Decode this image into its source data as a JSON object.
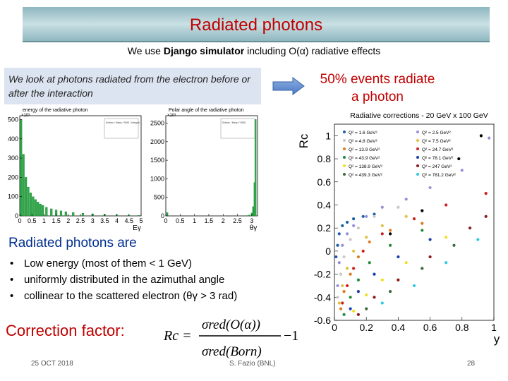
{
  "slide": {
    "title": "Radiated photons",
    "subtitle_pre": "We use ",
    "subtitle_bold": "Django simulator",
    "subtitle_post": " including O(α) radiative effects",
    "intro": "We look at photons radiated from the electron before or after the interaction",
    "radiate_line1": "50% events radiate",
    "radiate_line2": "a photon",
    "section_title": "Radiated photons are",
    "bullets": [
      "Low energy (most of them < 1 GeV)",
      "uniformly distributed in the azimuthal  angle",
      "collinear to the scattered electron (θγ > 3 rad)"
    ],
    "correction_title": "Correction factor:",
    "formula": {
      "lhs": "Rc =",
      "num": "σred(O(α))",
      "den": "σred(Born)",
      "tail": "−1"
    },
    "footer": {
      "date": "25 OCT 2018",
      "author": "S. Fazio (BNL)",
      "page": "28"
    },
    "colors": {
      "title": "#c00000",
      "section": "#00308f",
      "banner": "#8fb7bf",
      "intro_bg": "#dbe4f0"
    }
  },
  "chart_data": [
    {
      "type": "bar",
      "title": "energy of the radiative photon",
      "xlabel": "Eγ",
      "ylabel": "",
      "y_multiplier": "×10³",
      "xlim": [
        0,
        5
      ],
      "ylim": [
        0,
        520
      ],
      "xticks": [
        "0",
        "0.5",
        "1",
        "1.5",
        "2",
        "2.5",
        "3",
        "3.5",
        "4",
        "4.5",
        "5"
      ],
      "yticks": [
        "0",
        "100",
        "200",
        "300",
        "400",
        "500"
      ],
      "x": [
        0.05,
        0.15,
        0.25,
        0.35,
        0.45,
        0.55,
        0.65,
        0.75,
        0.85,
        0.95,
        1.1,
        1.3,
        1.5,
        1.7,
        1.9,
        2.2,
        2.6,
        3.0,
        3.5,
        4.0,
        4.5,
        4.9
      ],
      "values": [
        500,
        320,
        200,
        150,
        120,
        100,
        85,
        72,
        62,
        55,
        45,
        37,
        31,
        26,
        22,
        18,
        14,
        11,
        8,
        6,
        4,
        3
      ],
      "stats_box": "Entries / Mean / RMS / Integral"
    },
    {
      "type": "bar",
      "title": "Polar angle of the radiative photon",
      "xlabel": "θγ",
      "ylabel": "",
      "y_multiplier": "×10³",
      "xlim": [
        0,
        3.2
      ],
      "ylim": [
        0,
        2700
      ],
      "xticks": [
        "0",
        "0.5",
        "1",
        "1.5",
        "2",
        "2.5",
        "3"
      ],
      "yticks": [
        "0",
        "500",
        "1000",
        "1500",
        "2000",
        "2500"
      ],
      "x": [
        0.05,
        0.5,
        1.0,
        1.5,
        2.0,
        2.5,
        2.8,
        2.9,
        3.0,
        3.05,
        3.1,
        3.13
      ],
      "values": [
        90,
        8,
        3,
        2,
        3,
        4,
        10,
        25,
        80,
        250,
        900,
        2600
      ],
      "stats_box": "Entries / Mean / RMS"
    },
    {
      "type": "scatter",
      "title": "Radiative corrections - 20 GeV x 100 GeV",
      "xlabel": "y",
      "ylabel": "Rc",
      "xlim": [
        0,
        1
      ],
      "ylim": [
        -0.6,
        1.1
      ],
      "xticks": [
        "0",
        "0.2",
        "0.4",
        "0.6",
        "0.8",
        "1"
      ],
      "yticks": [
        "-0.6",
        "-0.4",
        "-0.2",
        "0",
        "0.2",
        "0.4",
        "0.6",
        "0.8",
        "1"
      ],
      "legend": "top-inside",
      "series": [
        {
          "name": "Q² = 1.6 GeV²",
          "color": "#1a5fa8",
          "points": [
            [
              0.01,
              -0.05
            ],
            [
              0.02,
              0.05
            ],
            [
              0.03,
              0.15
            ],
            [
              0.05,
              0.22
            ],
            [
              0.08,
              0.25
            ],
            [
              0.12,
              0.28
            ],
            [
              0.18,
              0.3
            ],
            [
              0.25,
              0.32
            ]
          ]
        },
        {
          "name": "Q² = 2.5 GeV²",
          "color": "#9a8fd6",
          "points": [
            [
              0.02,
              -0.3
            ],
            [
              0.03,
              -0.1
            ],
            [
              0.05,
              0.05
            ],
            [
              0.08,
              0.15
            ],
            [
              0.12,
              0.22
            ],
            [
              0.2,
              0.3
            ],
            [
              0.3,
              0.38
            ],
            [
              0.45,
              0.45
            ],
            [
              0.6,
              0.55
            ],
            [
              0.8,
              0.7
            ],
            [
              0.97,
              0.98
            ]
          ]
        },
        {
          "name": "Q² = 4.8 GeV²",
          "color": "#c8c8c8",
          "points": [
            [
              0.02,
              -0.4
            ],
            [
              0.04,
              -0.2
            ],
            [
              0.06,
              -0.05
            ],
            [
              0.1,
              0.1
            ],
            [
              0.15,
              0.2
            ],
            [
              0.25,
              0.3
            ],
            [
              0.4,
              0.38
            ]
          ]
        },
        {
          "name": "Q² = 7.5 GeV²",
          "color": "#e0c040",
          "points": [
            [
              0.03,
              -0.45
            ],
            [
              0.05,
              -0.3
            ],
            [
              0.08,
              -0.15
            ],
            [
              0.12,
              0.0
            ],
            [
              0.2,
              0.12
            ],
            [
              0.3,
              0.22
            ],
            [
              0.45,
              0.3
            ]
          ]
        },
        {
          "name": "Q² = 13.9 GeV²",
          "color": "#e07820",
          "points": [
            [
              0.04,
              -0.5
            ],
            [
              0.06,
              -0.35
            ],
            [
              0.1,
              -0.2
            ],
            [
              0.15,
              -0.05
            ],
            [
              0.22,
              0.08
            ],
            [
              0.35,
              0.18
            ],
            [
              0.55,
              0.24
            ]
          ]
        },
        {
          "name": "Q² = 24.7 GeV²",
          "color": "#cc2020",
          "points": [
            [
              0.05,
              -0.45
            ],
            [
              0.08,
              -0.3
            ],
            [
              0.12,
              -0.15
            ],
            [
              0.18,
              0.0
            ],
            [
              0.3,
              0.15
            ],
            [
              0.5,
              0.28
            ],
            [
              0.7,
              0.4
            ],
            [
              0.95,
              0.5
            ]
          ]
        },
        {
          "name": "Q² = 43.9 GeV²",
          "color": "#208a3a",
          "points": [
            [
              0.06,
              -0.55
            ],
            [
              0.1,
              -0.4
            ],
            [
              0.15,
              -0.25
            ],
            [
              0.22,
              -0.1
            ],
            [
              0.35,
              0.05
            ],
            [
              0.55,
              0.18
            ]
          ]
        },
        {
          "name": "Q² = 78.1 GeV²",
          "color": "#1a3fa8",
          "points": [
            [
              0.1,
              -0.5
            ],
            [
              0.15,
              -0.35
            ],
            [
              0.25,
              -0.2
            ],
            [
              0.4,
              -0.05
            ],
            [
              0.6,
              0.1
            ]
          ]
        },
        {
          "name": "Q² = 138.9 GeV²",
          "color": "#f0e020",
          "points": [
            [
              0.12,
              -0.52
            ],
            [
              0.2,
              -0.38
            ],
            [
              0.3,
              -0.25
            ],
            [
              0.45,
              -0.1
            ],
            [
              0.7,
              0.12
            ]
          ]
        },
        {
          "name": "Q² = 247 GeV²",
          "color": "#8a1a1a",
          "points": [
            [
              0.15,
              -0.55
            ],
            [
              0.25,
              -0.4
            ],
            [
              0.4,
              -0.25
            ],
            [
              0.6,
              -0.05
            ],
            [
              0.85,
              0.2
            ],
            [
              0.95,
              0.3
            ]
          ]
        },
        {
          "name": "Q² = 439.3 GeV²",
          "color": "#3a6a3a",
          "points": [
            [
              0.2,
              -0.5
            ],
            [
              0.35,
              -0.35
            ],
            [
              0.55,
              -0.15
            ],
            [
              0.75,
              0.05
            ]
          ]
        },
        {
          "name": "Q² = 781.2 GeV²",
          "color": "#30c8e0",
          "points": [
            [
              0.3,
              -0.45
            ],
            [
              0.5,
              -0.3
            ],
            [
              0.7,
              -0.1
            ],
            [
              0.9,
              0.1
            ]
          ]
        },
        {
          "name": "",
          "color": "#000000",
          "points": [
            [
              0.35,
              0.15
            ],
            [
              0.55,
              0.35
            ],
            [
              0.78,
              0.8
            ],
            [
              0.92,
              1.0
            ]
          ]
        }
      ]
    }
  ]
}
